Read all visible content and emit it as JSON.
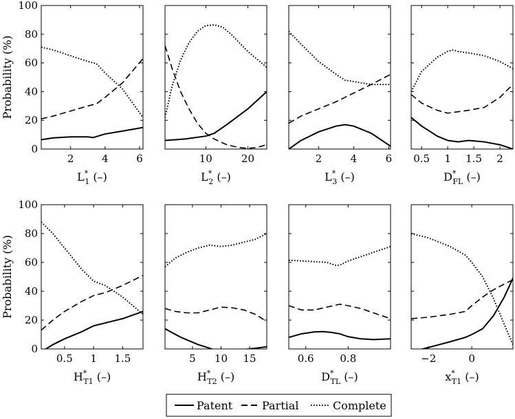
{
  "chart_data": {
    "type": "line",
    "ylabel": "Probability (%)",
    "ylim": [
      0,
      100
    ],
    "yticks": [
      0,
      20,
      40,
      60,
      80,
      100
    ],
    "legend": {
      "placement": "bottom-center",
      "entries": [
        {
          "name": "Patent",
          "style": "solid"
        },
        {
          "name": "Partial",
          "style": "dashed"
        },
        {
          "name": "Complete",
          "style": "dotted"
        }
      ]
    },
    "panels": [
      {
        "xlabel": {
          "base": "L",
          "sup": "*",
          "sub": "1",
          "suffix": " (–)"
        },
        "xlim": [
          0.3,
          6.2
        ],
        "xticks": [
          2,
          4,
          6
        ],
        "xticklabels": [
          "2",
          "4",
          "6"
        ],
        "series": [
          {
            "name": "Patent",
            "x": [
              0.3,
              1,
              2,
              3,
              3.3,
              4,
              5,
              6.2
            ],
            "y": [
              6.5,
              7.8,
              8.5,
              8.5,
              8,
              10.5,
              12.5,
              15
            ]
          },
          {
            "name": "Partial",
            "x": [
              0.3,
              1,
              2,
              3,
              3.5,
              4,
              5,
              6.2
            ],
            "y": [
              21,
              23,
              26.5,
              30,
              31.5,
              36,
              46,
              63
            ]
          },
          {
            "name": "Complete",
            "x": [
              0.3,
              1,
              2,
              3,
              3.5,
              4,
              5,
              6.2
            ],
            "y": [
              71,
              69,
              65,
              61,
              59.5,
              53,
              42,
              22
            ]
          }
        ]
      },
      {
        "xlabel": {
          "base": "L",
          "sup": "*",
          "sub": "2",
          "suffix": " (–)"
        },
        "xlim": [
          0.3,
          24.5
        ],
        "xticks": [
          10,
          20
        ],
        "xticklabels": [
          "10",
          "20"
        ],
        "series": [
          {
            "name": "Patent",
            "x": [
              0.3,
              5,
              10,
              12,
              15,
              20,
              24.5
            ],
            "y": [
              6,
              7,
              9,
              11,
              17,
              28,
              40
            ]
          },
          {
            "name": "Partial",
            "x": [
              0.3,
              2,
              4,
              6,
              8,
              10,
              12,
              15,
              18,
              20,
              22,
              24.5
            ],
            "y": [
              72,
              56,
              40,
              28,
              18,
              11,
              7,
              3,
              1,
              0.5,
              1,
              3
            ]
          },
          {
            "name": "Complete",
            "x": [
              0.3,
              2,
              4,
              6,
              8,
              10,
              12,
              14,
              16,
              18,
              20,
              22,
              24.5
            ],
            "y": [
              22,
              44,
              62,
              74,
              82,
              86,
              86.5,
              85,
              80,
              74,
              68,
              63,
              57
            ]
          }
        ]
      },
      {
        "xlabel": {
          "base": "L",
          "sup": "*",
          "sub": "3",
          "suffix": " (–)"
        },
        "xlim": [
          0.3,
          6.1
        ],
        "xticks": [
          2,
          4,
          6
        ],
        "xticklabels": [
          "2",
          "4",
          "6"
        ],
        "series": [
          {
            "name": "Patent",
            "x": [
              0.3,
              1,
              2,
              3,
              3.5,
              4,
              5,
              6.1
            ],
            "y": [
              0,
              6,
              12,
              16,
              17,
              16,
              11,
              2
            ]
          },
          {
            "name": "Partial",
            "x": [
              0.3,
              1,
              2,
              3,
              4,
              5,
              6.1
            ],
            "y": [
              18,
              23,
              28,
              33,
              39,
              45,
              52
            ]
          },
          {
            "name": "Complete",
            "x": [
              0.3,
              1,
              2,
              3,
              3.5,
              4,
              5,
              6.1
            ],
            "y": [
              82,
              73,
              61,
              52,
              48,
              47,
              45,
              45
            ]
          }
        ]
      },
      {
        "xlabel": {
          "base": "D",
          "sup": "*",
          "sub": "FL",
          "suffix": " (–)"
        },
        "xlim": [
          0.3,
          2.25
        ],
        "xticks": [
          0.5,
          1,
          1.5,
          2
        ],
        "xticklabels": [
          "0.5",
          "1",
          "1.5",
          "2"
        ],
        "series": [
          {
            "name": "Patent",
            "x": [
              0.3,
              0.5,
              0.8,
              1.0,
              1.2,
              1.4,
              1.7,
              2.0,
              2.25
            ],
            "y": [
              22,
              16,
              9,
              6,
              5,
              6,
              5,
              3,
              0
            ]
          },
          {
            "name": "Partial",
            "x": [
              0.3,
              0.5,
              0.8,
              1.0,
              1.2,
              1.4,
              1.7,
              2.0,
              2.25
            ],
            "y": [
              38,
              32,
              27,
              25,
              26,
              27,
              29,
              36,
              45
            ]
          },
          {
            "name": "Complete",
            "x": [
              0.3,
              0.5,
              0.8,
              1.0,
              1.1,
              1.2,
              1.4,
              1.7,
              2.0,
              2.25
            ],
            "y": [
              40,
              54,
              64,
              68,
              69,
              68,
              67,
              65,
              61,
              56
            ]
          }
        ]
      },
      {
        "xlabel": {
          "base": "H",
          "sup": "*",
          "sub": "T1",
          "suffix": " (–)"
        },
        "xlim": [
          0.1,
          1.85
        ],
        "xticks": [
          0.5,
          1,
          1.5
        ],
        "xticklabels": [
          "0.5",
          "1",
          "1.5"
        ],
        "series": [
          {
            "name": "Patent",
            "x": [
              0.1,
              0.3,
              0.5,
              0.8,
              1.0,
              1.2,
              1.5,
              1.85
            ],
            "y": [
              -2,
              3,
              7,
              12,
              16,
              18,
              21,
              26
            ]
          },
          {
            "name": "Partial",
            "x": [
              0.1,
              0.3,
              0.5,
              0.8,
              1.0,
              1.2,
              1.5,
              1.85
            ],
            "y": [
              13,
              20,
              26,
              33,
              37,
              39,
              44,
              51
            ]
          },
          {
            "name": "Complete",
            "x": [
              0.1,
              0.3,
              0.5,
              0.8,
              1.0,
              1.2,
              1.5,
              1.85
            ],
            "y": [
              88,
              80,
              70,
              55,
              47,
              44,
              36,
              24
            ]
          }
        ]
      },
      {
        "xlabel": {
          "base": "H",
          "sup": "*",
          "sub": "T2",
          "suffix": " (–)"
        },
        "xlim": [
          0.2,
          18
        ],
        "xticks": [
          5,
          10,
          15
        ],
        "xticklabels": [
          "5",
          "10",
          "15"
        ],
        "series": [
          {
            "name": "Patent",
            "x": [
              0.2,
              3,
              6,
              8,
              9,
              12,
              15,
              18
            ],
            "y": [
              14,
              8,
              3,
              0.5,
              -1,
              -1,
              0,
              1.5
            ]
          },
          {
            "name": "Partial",
            "x": [
              0.2,
              2,
              4,
              6,
              8,
              10,
              12,
              14,
              16,
              18
            ],
            "y": [
              28,
              26,
              25,
              25,
              27,
              29,
              28.5,
              27,
              24,
              19
            ]
          },
          {
            "name": "Complete",
            "x": [
              0.2,
              2,
              4,
              6,
              8,
              10,
              12,
              14,
              16,
              18
            ],
            "y": [
              57,
              63,
              67,
              70,
              72,
              71,
              72,
              74,
              76,
              80
            ]
          }
        ]
      },
      {
        "xlabel": {
          "base": "D",
          "sup": "*",
          "sub": "TL",
          "suffix": " (–)"
        },
        "xlim": [
          0.52,
          1.0
        ],
        "xticks": [
          0.6,
          0.8
        ],
        "xticklabels": [
          "0.6",
          "0.8"
        ],
        "series": [
          {
            "name": "Patent",
            "x": [
              0.52,
              0.58,
              0.64,
              0.68,
              0.72,
              0.76,
              0.8,
              0.86,
              0.92,
              1.0
            ],
            "y": [
              8,
              10.5,
              11.8,
              12,
              11.5,
              10.5,
              8.5,
              7,
              6.5,
              7
            ]
          },
          {
            "name": "Partial",
            "x": [
              0.52,
              0.58,
              0.64,
              0.7,
              0.76,
              0.8,
              0.86,
              0.92,
              1.0
            ],
            "y": [
              30,
              27,
              27,
              29,
              31,
              30,
              28,
              25,
              21
            ]
          },
          {
            "name": "Complete",
            "x": [
              0.52,
              0.58,
              0.64,
              0.7,
              0.74,
              0.76,
              0.8,
              0.86,
              0.92,
              1.0
            ],
            "y": [
              61.5,
              61,
              60.5,
              60,
              58,
              58,
              61,
              64,
              67,
              71
            ]
          }
        ]
      },
      {
        "xlabel": {
          "base": "x",
          "sup": "*",
          "sub": "T1",
          "suffix": " (–)"
        },
        "xlim": [
          -2.8,
          1.9
        ],
        "xticks": [
          -2,
          0
        ],
        "xticklabels": [
          "−2",
          "0"
        ],
        "series": [
          {
            "name": "Patent",
            "x": [
              -2.8,
              -2,
              -1,
              -0.3,
              0,
              0.5,
              1.0,
              1.5,
              1.9
            ],
            "y": [
              -2,
              1,
              5,
              8,
              10,
              14,
              23,
              36,
              49
            ]
          },
          {
            "name": "Partial",
            "x": [
              -2.8,
              -2,
              -1,
              -0.3,
              0,
              0.5,
              1.0,
              1.5,
              1.9
            ],
            "y": [
              21,
              22,
              24,
              26,
              30,
              36,
              41,
              45,
              48
            ]
          },
          {
            "name": "Complete",
            "x": [
              -2.8,
              -2,
              -1,
              -0.3,
              0,
              0.5,
              1.0,
              1.5,
              1.9
            ],
            "y": [
              80,
              77,
              71,
              65,
              60,
              50,
              35,
              17,
              3
            ]
          }
        ]
      }
    ]
  }
}
